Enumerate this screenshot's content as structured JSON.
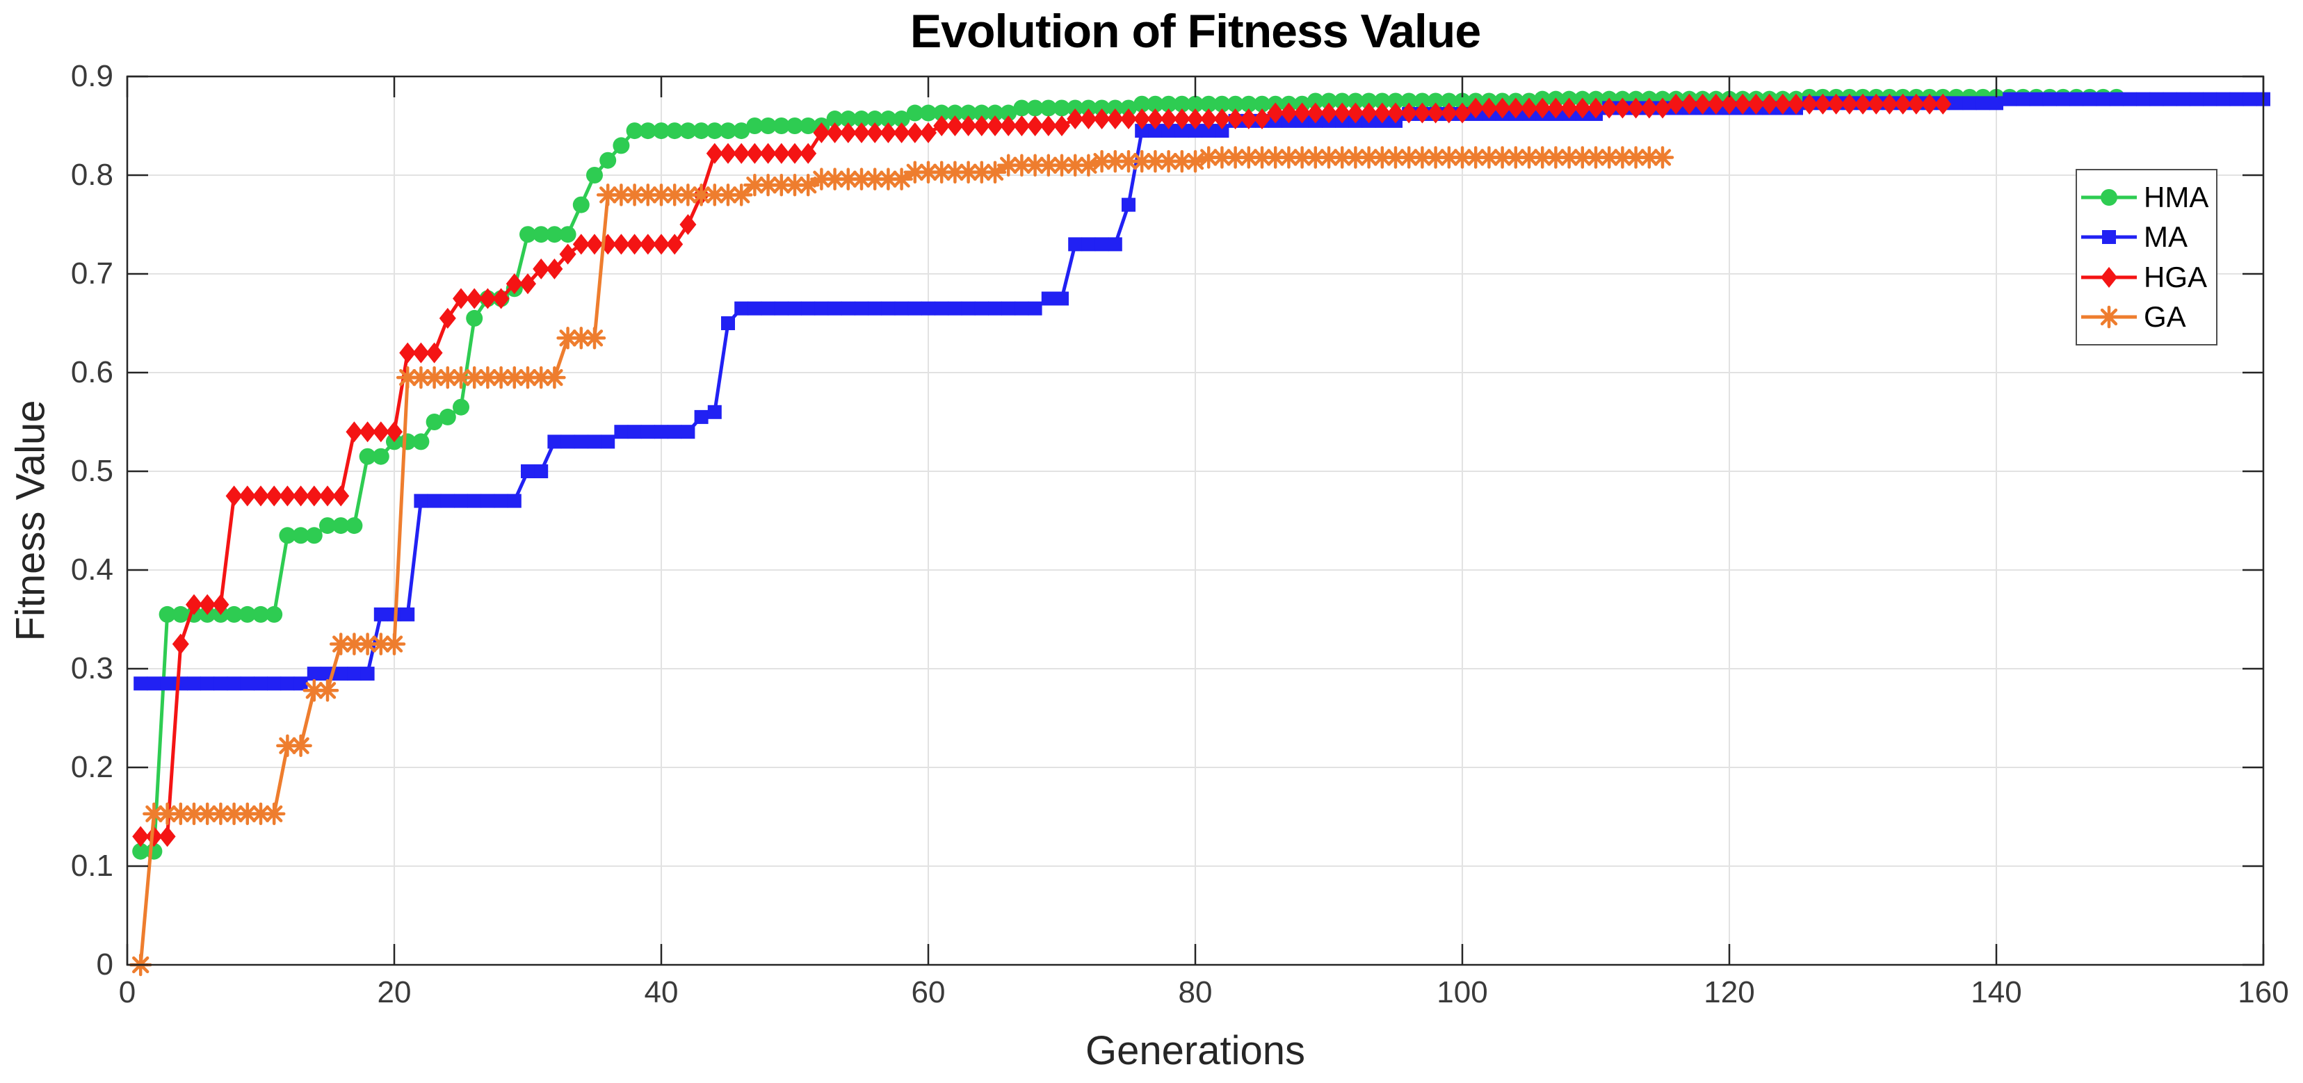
{
  "chart_data": {
    "type": "line",
    "title": "Evolution of Fitness Value",
    "xlabel": "Generations",
    "ylabel": "Fitness Value",
    "xlim": [
      0,
      160
    ],
    "ylim": [
      0,
      0.9
    ],
    "xticks": [
      0,
      20,
      40,
      60,
      80,
      100,
      120,
      140,
      160
    ],
    "yticks": [
      0,
      0.1,
      0.2,
      0.3,
      0.4,
      0.5,
      0.6,
      0.7,
      0.8,
      0.9
    ],
    "grid": true,
    "legend_position": "upper-right-inside",
    "segment_format": "[start_generation, end_generation, fitness_value] (value held for each generation in range; markers drawn every generation)",
    "series": [
      {
        "name": "HMA",
        "color": "#2ecc52",
        "marker": "circle",
        "segments": [
          [
            1,
            2,
            0.115
          ],
          [
            3,
            11,
            0.355
          ],
          [
            12,
            14,
            0.435
          ],
          [
            15,
            17,
            0.445
          ],
          [
            18,
            19,
            0.515
          ],
          [
            20,
            22,
            0.53
          ],
          [
            23,
            23,
            0.55
          ],
          [
            24,
            24,
            0.555
          ],
          [
            25,
            25,
            0.565
          ],
          [
            26,
            26,
            0.655
          ],
          [
            27,
            28,
            0.675
          ],
          [
            29,
            29,
            0.685
          ],
          [
            30,
            33,
            0.74
          ],
          [
            34,
            34,
            0.77
          ],
          [
            35,
            35,
            0.8
          ],
          [
            36,
            36,
            0.815
          ],
          [
            37,
            37,
            0.83
          ],
          [
            38,
            46,
            0.845
          ],
          [
            47,
            52,
            0.85
          ],
          [
            53,
            58,
            0.857
          ],
          [
            59,
            66,
            0.863
          ],
          [
            67,
            75,
            0.868
          ],
          [
            76,
            88,
            0.872
          ],
          [
            89,
            105,
            0.875
          ],
          [
            106,
            125,
            0.877
          ],
          [
            126,
            149,
            0.879
          ]
        ]
      },
      {
        "name": "MA",
        "color": "#2121f3",
        "marker": "square",
        "segments": [
          [
            1,
            13,
            0.285
          ],
          [
            14,
            18,
            0.295
          ],
          [
            19,
            21,
            0.355
          ],
          [
            22,
            29,
            0.47
          ],
          [
            30,
            31,
            0.5
          ],
          [
            32,
            36,
            0.53
          ],
          [
            37,
            42,
            0.54
          ],
          [
            43,
            43,
            0.555
          ],
          [
            44,
            44,
            0.56
          ],
          [
            45,
            45,
            0.65
          ],
          [
            46,
            68,
            0.665
          ],
          [
            69,
            70,
            0.675
          ],
          [
            71,
            74,
            0.73
          ],
          [
            75,
            75,
            0.77
          ],
          [
            76,
            82,
            0.845
          ],
          [
            83,
            95,
            0.855
          ],
          [
            96,
            110,
            0.862
          ],
          [
            111,
            125,
            0.868
          ],
          [
            126,
            140,
            0.873
          ],
          [
            141,
            160,
            0.877
          ]
        ]
      },
      {
        "name": "HGA",
        "color": "#f41414",
        "marker": "diamond",
        "segments": [
          [
            1,
            3,
            0.13
          ],
          [
            4,
            4,
            0.325
          ],
          [
            5,
            7,
            0.365
          ],
          [
            8,
            16,
            0.475
          ],
          [
            17,
            20,
            0.54
          ],
          [
            21,
            23,
            0.62
          ],
          [
            24,
            24,
            0.655
          ],
          [
            25,
            28,
            0.675
          ],
          [
            29,
            30,
            0.69
          ],
          [
            31,
            32,
            0.705
          ],
          [
            33,
            33,
            0.72
          ],
          [
            34,
            41,
            0.73
          ],
          [
            42,
            42,
            0.75
          ],
          [
            43,
            43,
            0.78
          ],
          [
            44,
            51,
            0.822
          ],
          [
            52,
            60,
            0.843
          ],
          [
            61,
            70,
            0.85
          ],
          [
            71,
            85,
            0.857
          ],
          [
            86,
            100,
            0.863
          ],
          [
            101,
            115,
            0.868
          ],
          [
            116,
            136,
            0.872
          ]
        ]
      },
      {
        "name": "GA",
        "color": "#ee7d2e",
        "marker": "asterisk",
        "segments": [
          [
            1,
            1,
            0.0
          ],
          [
            2,
            11,
            0.153
          ],
          [
            12,
            13,
            0.222
          ],
          [
            14,
            15,
            0.278
          ],
          [
            16,
            20,
            0.325
          ],
          [
            21,
            32,
            0.595
          ],
          [
            33,
            35,
            0.635
          ],
          [
            36,
            46,
            0.78
          ],
          [
            47,
            51,
            0.79
          ],
          [
            52,
            58,
            0.796
          ],
          [
            59,
            65,
            0.803
          ],
          [
            66,
            72,
            0.81
          ],
          [
            73,
            80,
            0.814
          ],
          [
            81,
            115,
            0.818
          ]
        ]
      }
    ]
  },
  "style_colors": {
    "background": "#ffffff",
    "grid": "#e2e2e2",
    "axis_box": "#262626",
    "tick_label": "#3a3a3a",
    "title": "#000000"
  }
}
